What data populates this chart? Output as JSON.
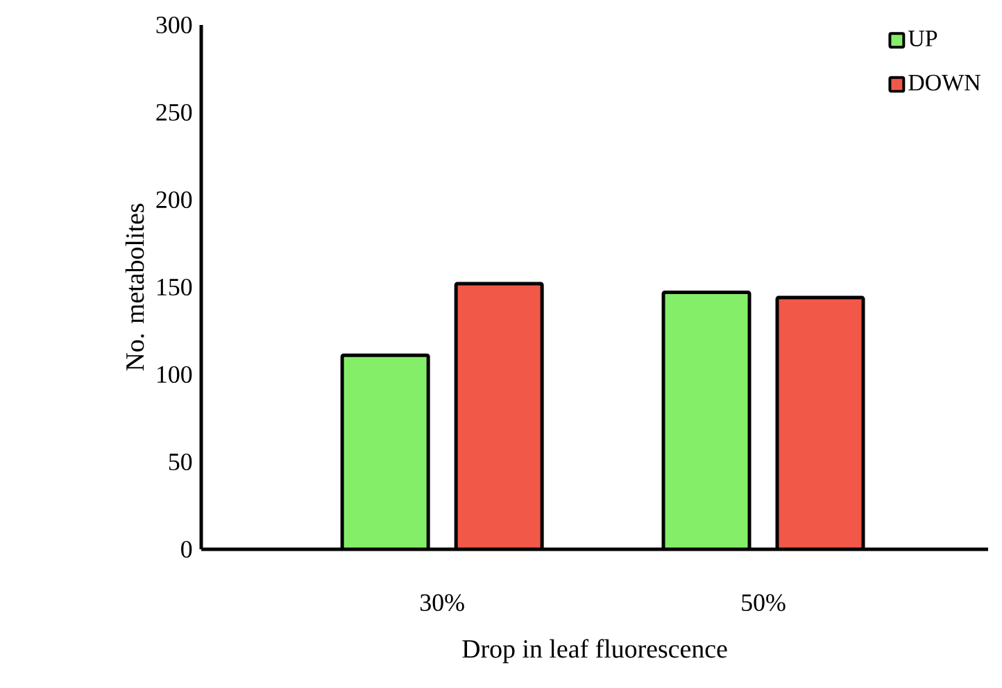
{
  "chart_data": {
    "type": "bar",
    "xlabel": "Drop in leaf fluorescence",
    "ylabel": "No. metabolites",
    "categories": [
      "30%",
      "50%"
    ],
    "series": [
      {
        "name": "UP",
        "color": "#85ee69",
        "values": [
          111,
          147
        ]
      },
      {
        "name": "DOWN",
        "color": "#f15848",
        "values": [
          152,
          144
        ]
      }
    ],
    "ylim": [
      0,
      300
    ],
    "yticks": [
      0,
      50,
      100,
      150,
      200,
      250,
      300
    ],
    "grid": false,
    "legend": "top right"
  }
}
